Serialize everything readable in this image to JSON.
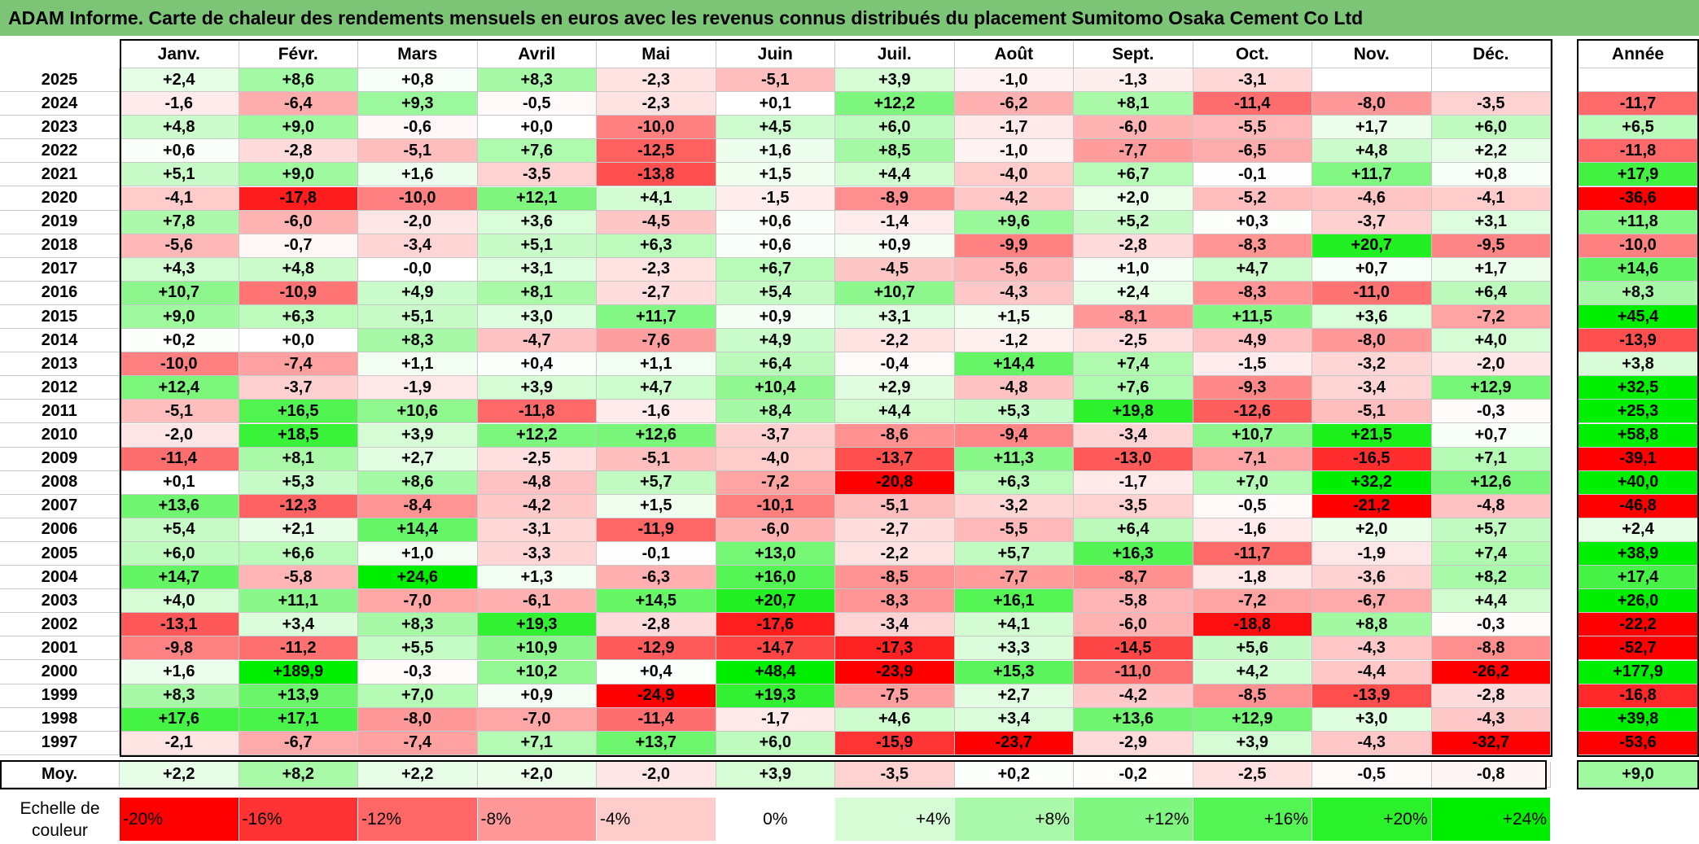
{
  "title": "ADAM Informe. Carte de chaleur des rendements mensuels en euros avec les revenus connus distribués du placement Sumitomo Osaka Cement Co Ltd",
  "chart_data": {
    "type": "heatmap",
    "columns": [
      "Janv.",
      "Févr.",
      "Mars",
      "Avril",
      "Mai",
      "Juin",
      "Juil.",
      "Août",
      "Sept.",
      "Oct.",
      "Nov.",
      "Déc."
    ],
    "year_header": "Année",
    "average_label": "Moy.",
    "rows": [
      {
        "year": "2025",
        "values": [
          "+2,4",
          "+8,6",
          "+0,8",
          "+8,3",
          "-2,3",
          "-5,1",
          "+3,9",
          "-1,0",
          "-1,3",
          "-3,1",
          "",
          ""
        ],
        "annual": ""
      },
      {
        "year": "2024",
        "values": [
          "-1,6",
          "-6,4",
          "+9,3",
          "-0,5",
          "-2,3",
          "+0,1",
          "+12,2",
          "-6,2",
          "+8,1",
          "-11,4",
          "-8,0",
          "-3,5"
        ],
        "annual": "-11,7"
      },
      {
        "year": "2023",
        "values": [
          "+4,8",
          "+9,0",
          "-0,6",
          "+0,0",
          "-10,0",
          "+4,5",
          "+6,0",
          "-1,7",
          "-6,0",
          "-5,5",
          "+1,7",
          "+6,0"
        ],
        "annual": "+6,5"
      },
      {
        "year": "2022",
        "values": [
          "+0,6",
          "-2,8",
          "-5,1",
          "+7,6",
          "-12,5",
          "+1,6",
          "+8,5",
          "-1,0",
          "-7,7",
          "-6,5",
          "+4,8",
          "+2,2"
        ],
        "annual": "-11,8"
      },
      {
        "year": "2021",
        "values": [
          "+5,1",
          "+9,0",
          "+1,6",
          "-3,5",
          "-13,8",
          "+1,5",
          "+4,4",
          "-4,0",
          "+6,7",
          "-0,1",
          "+11,7",
          "+0,8"
        ],
        "annual": "+17,9"
      },
      {
        "year": "2020",
        "values": [
          "-4,1",
          "-17,8",
          "-10,0",
          "+12,1",
          "+4,1",
          "-1,5",
          "-8,9",
          "-4,2",
          "+2,0",
          "-5,2",
          "-4,6",
          "-4,1"
        ],
        "annual": "-36,6"
      },
      {
        "year": "2019",
        "values": [
          "+7,8",
          "-6,0",
          "-2,0",
          "+3,6",
          "-4,5",
          "+0,6",
          "-1,4",
          "+9,6",
          "+5,2",
          "+0,3",
          "-3,7",
          "+3,1"
        ],
        "annual": "+11,8"
      },
      {
        "year": "2018",
        "values": [
          "-5,6",
          "-0,7",
          "-3,4",
          "+5,1",
          "+6,3",
          "+0,6",
          "+0,9",
          "-9,9",
          "-2,8",
          "-8,3",
          "+20,7",
          "-9,5"
        ],
        "annual": "-10,0"
      },
      {
        "year": "2017",
        "values": [
          "+4,3",
          "+4,8",
          "-0,0",
          "+3,1",
          "-2,3",
          "+6,7",
          "-4,5",
          "-5,6",
          "+1,0",
          "+4,7",
          "+0,7",
          "+1,7"
        ],
        "annual": "+14,6"
      },
      {
        "year": "2016",
        "values": [
          "+10,7",
          "-10,9",
          "+4,9",
          "+8,1",
          "-2,7",
          "+5,4",
          "+10,7",
          "-4,3",
          "+2,4",
          "-8,3",
          "-11,0",
          "+6,4"
        ],
        "annual": "+8,3"
      },
      {
        "year": "2015",
        "values": [
          "+9,0",
          "+6,3",
          "+5,1",
          "+3,0",
          "+11,7",
          "+0,9",
          "+3,1",
          "+1,5",
          "-8,1",
          "+11,5",
          "+3,6",
          "-7,2"
        ],
        "annual": "+45,4"
      },
      {
        "year": "2014",
        "values": [
          "+0,2",
          "+0,0",
          "+8,3",
          "-4,7",
          "-7,6",
          "+4,9",
          "-2,2",
          "-1,2",
          "-2,5",
          "-4,9",
          "-8,0",
          "+4,0"
        ],
        "annual": "-13,9"
      },
      {
        "year": "2013",
        "values": [
          "-10,0",
          "-7,4",
          "+1,1",
          "+0,4",
          "+1,1",
          "+6,4",
          "-0,4",
          "+14,4",
          "+7,4",
          "-1,5",
          "-3,2",
          "-2,0"
        ],
        "annual": "+3,8"
      },
      {
        "year": "2012",
        "values": [
          "+12,4",
          "-3,7",
          "-1,9",
          "+3,9",
          "+4,7",
          "+10,4",
          "+2,9",
          "-4,8",
          "+7,6",
          "-9,3",
          "-3,4",
          "+12,9"
        ],
        "annual": "+32,5"
      },
      {
        "year": "2011",
        "values": [
          "-5,1",
          "+16,5",
          "+10,6",
          "-11,8",
          "-1,6",
          "+8,4",
          "+4,4",
          "+5,3",
          "+19,8",
          "-12,6",
          "-5,1",
          "-0,3"
        ],
        "annual": "+25,3"
      },
      {
        "year": "2010",
        "values": [
          "-2,0",
          "+18,5",
          "+3,9",
          "+12,2",
          "+12,6",
          "-3,7",
          "-8,6",
          "-9,4",
          "-3,4",
          "+10,7",
          "+21,5",
          "+0,7"
        ],
        "annual": "+58,8"
      },
      {
        "year": "2009",
        "values": [
          "-11,4",
          "+8,1",
          "+2,7",
          "-2,5",
          "-5,1",
          "-4,0",
          "-13,7",
          "+11,3",
          "-13,0",
          "-7,1",
          "-16,5",
          "+7,1"
        ],
        "annual": "-39,1"
      },
      {
        "year": "2008",
        "values": [
          "+0,1",
          "+5,3",
          "+8,6",
          "-4,8",
          "+5,7",
          "-7,2",
          "-20,8",
          "+6,3",
          "-1,7",
          "+7,0",
          "+32,2",
          "+12,6"
        ],
        "annual": "+40,0"
      },
      {
        "year": "2007",
        "values": [
          "+13,6",
          "-12,3",
          "-8,4",
          "-4,2",
          "+1,5",
          "-10,1",
          "-5,1",
          "-3,2",
          "-3,5",
          "-0,5",
          "-21,2",
          "-4,8"
        ],
        "annual": "-46,8"
      },
      {
        "year": "2006",
        "values": [
          "+5,4",
          "+2,1",
          "+14,4",
          "-3,1",
          "-11,9",
          "-6,0",
          "-2,7",
          "-5,5",
          "+6,4",
          "-1,6",
          "+2,0",
          "+5,7"
        ],
        "annual": "+2,4"
      },
      {
        "year": "2005",
        "values": [
          "+6,0",
          "+6,6",
          "+1,0",
          "-3,3",
          "-0,1",
          "+13,0",
          "-2,2",
          "+5,7",
          "+16,3",
          "-11,7",
          "-1,9",
          "+7,4"
        ],
        "annual": "+38,9"
      },
      {
        "year": "2004",
        "values": [
          "+14,7",
          "-5,8",
          "+24,6",
          "+1,3",
          "-6,3",
          "+16,0",
          "-8,5",
          "-7,7",
          "-8,7",
          "-1,8",
          "-3,6",
          "+8,2"
        ],
        "annual": "+17,4"
      },
      {
        "year": "2003",
        "values": [
          "+4,0",
          "+11,1",
          "-7,0",
          "-6,1",
          "+14,5",
          "+20,7",
          "-8,3",
          "+16,1",
          "-5,8",
          "-7,2",
          "-6,7",
          "+4,4"
        ],
        "annual": "+26,0"
      },
      {
        "year": "2002",
        "values": [
          "-13,1",
          "+3,4",
          "+8,3",
          "+19,3",
          "-2,8",
          "-17,6",
          "-3,4",
          "+4,1",
          "-6,0",
          "-18,8",
          "+8,8",
          "-0,3"
        ],
        "annual": "-22,2"
      },
      {
        "year": "2001",
        "values": [
          "-9,8",
          "-11,2",
          "+5,5",
          "+10,9",
          "-12,9",
          "-14,7",
          "-17,3",
          "+3,3",
          "-14,5",
          "+5,6",
          "-4,3",
          "-8,8"
        ],
        "annual": "-52,7"
      },
      {
        "year": "2000",
        "values": [
          "+1,6",
          "+189,9",
          "-0,3",
          "+10,2",
          "+0,4",
          "+48,4",
          "-23,9",
          "+15,3",
          "-11,0",
          "+4,2",
          "-4,4",
          "-26,2"
        ],
        "annual": "+177,9"
      },
      {
        "year": "1999",
        "values": [
          "+8,3",
          "+13,9",
          "+7,0",
          "+0,9",
          "-24,9",
          "+19,3",
          "-7,5",
          "+2,7",
          "-4,2",
          "-8,5",
          "-13,9",
          "-2,8"
        ],
        "annual": "-16,8"
      },
      {
        "year": "1998",
        "values": [
          "+17,6",
          "+17,1",
          "-8,0",
          "-7,0",
          "-11,4",
          "-1,7",
          "+4,6",
          "+3,4",
          "+13,6",
          "+12,9",
          "+3,0",
          "-4,3"
        ],
        "annual": "+39,8"
      },
      {
        "year": "1997",
        "values": [
          "-2,1",
          "-6,7",
          "-7,4",
          "+7,1",
          "+13,7",
          "+6,0",
          "-15,9",
          "-23,7",
          "-2,9",
          "+3,9",
          "-4,3",
          "-32,7"
        ],
        "annual": "-53,6"
      }
    ],
    "average": {
      "values": [
        "+2,2",
        "+8,2",
        "+2,2",
        "+2,0",
        "-2,0",
        "+3,9",
        "-3,5",
        "+0,2",
        "-0,2",
        "-2,5",
        "-0,5",
        "-0,8"
      ],
      "annual": "+9,0"
    },
    "scale": {
      "label": "Echelle de couleur",
      "stops": [
        "-20%",
        "-16%",
        "-12%",
        "-8%",
        "-4%",
        "0%",
        "+4%",
        "+8%",
        "+12%",
        "+16%",
        "+20%",
        "+24%"
      ]
    },
    "colors": {
      "title_bg": "#7cc576",
      "negative_max": "#ff0000",
      "neutral": "#ffffff",
      "positive_max": "#00ee00"
    }
  }
}
